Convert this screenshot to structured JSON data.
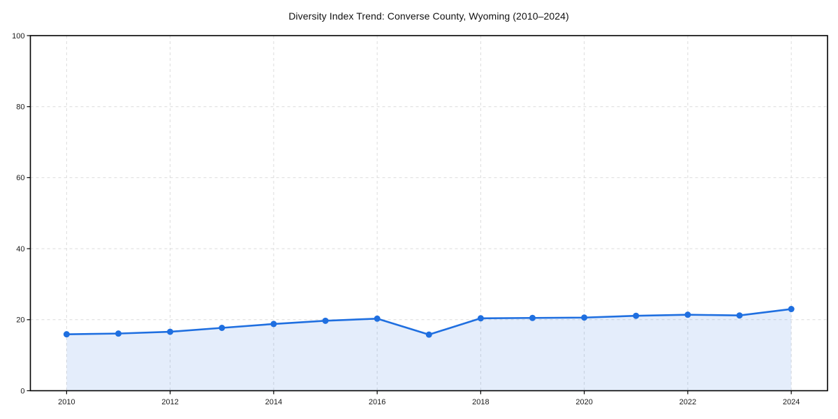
{
  "chart_data": {
    "type": "area",
    "title": "Diversity Index Trend: Converse County, Wyoming (2010–2024)",
    "x": [
      2010,
      2011,
      2012,
      2013,
      2014,
      2015,
      2016,
      2017,
      2018,
      2019,
      2020,
      2021,
      2022,
      2023,
      2024
    ],
    "series": [
      {
        "name": "Diversity Index",
        "values": [
          15.9,
          16.1,
          16.6,
          17.7,
          18.8,
          19.7,
          20.3,
          15.8,
          20.4,
          20.5,
          20.6,
          21.1,
          21.4,
          21.2,
          23.0
        ]
      }
    ],
    "xlabel": "",
    "ylabel": "",
    "xlim": [
      2009.3,
      2024.7
    ],
    "ylim": [
      0,
      100
    ],
    "xticks": [
      2010,
      2012,
      2014,
      2016,
      2018,
      2020,
      2022,
      2024
    ],
    "yticks": [
      0,
      20,
      40,
      60,
      80,
      100
    ],
    "grid": true,
    "grid_style": "dashed",
    "legend_position": "none",
    "marker": "circle",
    "colors": {
      "line": "#1f6fe0",
      "marker": "#1f6fe0",
      "fill": "#1f6fe0",
      "fill_opacity": 0.12,
      "grid": "#dcdcdc",
      "axis": "#000000",
      "tick_text": "#1a1a1a",
      "title_text": "#111111"
    }
  }
}
